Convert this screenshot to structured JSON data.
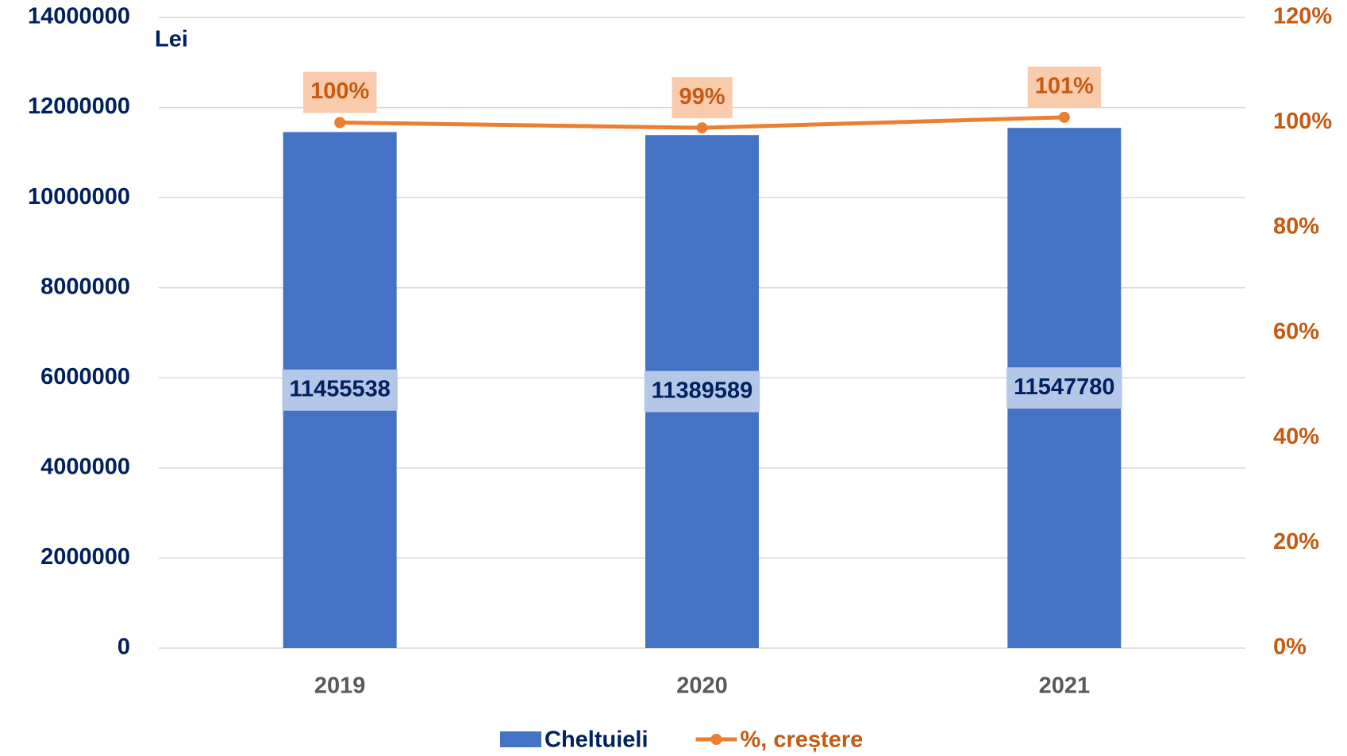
{
  "chart_data": {
    "type": "bar-line",
    "y_label": "Lei",
    "categories": [
      "2019",
      "2020",
      "2021"
    ],
    "series": [
      {
        "name": "Cheltuieli",
        "color": "#4472c4",
        "type": "bar",
        "values": [
          11455538,
          11389589,
          11547780
        ]
      },
      {
        "name": "%, creștere",
        "color": "#ed7d31",
        "type": "line",
        "axis": "y2",
        "values": [
          100,
          99,
          101
        ],
        "value_labels": [
          "100%",
          "99%",
          "101%"
        ]
      }
    ],
    "ylim": [
      0,
      14000000
    ],
    "yticks": [
      0,
      2000000,
      4000000,
      6000000,
      8000000,
      10000000,
      12000000,
      14000000
    ],
    "y2lim": [
      0,
      120
    ],
    "y2ticks": [
      {
        "value": 0,
        "label": "0%"
      },
      {
        "value": 20,
        "label": "20%"
      },
      {
        "value": 40,
        "label": "40%"
      },
      {
        "value": 60,
        "label": "60%"
      },
      {
        "value": 80,
        "label": "80%"
      },
      {
        "value": 100,
        "label": "100%"
      },
      {
        "value": 120,
        "label": "120%"
      }
    ],
    "grid": true,
    "legend": "bottom"
  }
}
